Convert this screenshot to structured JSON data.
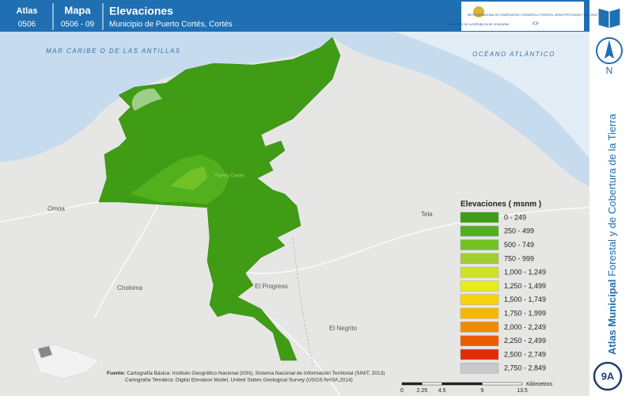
{
  "header": {
    "atlas_label": "Atlas",
    "atlas_code": "0506",
    "map_label": "Mapa",
    "map_code": "0506 - 09",
    "title": "Elevaciones",
    "subtitle": "Municipio de Puerto Cortés, Cortés",
    "logo_left": "GOBIERNO DE LA REPÚBLICA DE HONDURAS",
    "logo_right": "INSTITUTO NACIONAL DE CONSERVACIÓN Y DESARROLLO FORESTAL, ÁREAS PROTEGIDAS Y VIDA SILVESTRE",
    "logo_right_short": "ICF"
  },
  "sidebar": {
    "north": "N",
    "atlas_bold": "Atlas Municipal",
    "atlas_rest": "Forestal y de Cobertura de la Tierra",
    "badge": "9A"
  },
  "places": {
    "sea_west": "MAR CARIBE O DE LAS ANTILLAS",
    "sea_east": "OCÉANO ATLÁNTICO",
    "omoa": "Omoa",
    "tela": "Tela",
    "choloma": "Choloma",
    "progreso": "El Progreso",
    "negrito": "El Negrito",
    "cortes": "Puerto Cortés"
  },
  "legend": {
    "title": "Elevaciones ( msnm )",
    "items": [
      {
        "label": "0 - 249",
        "color": "#3f9c14"
      },
      {
        "label": "250 - 499",
        "color": "#52b01f"
      },
      {
        "label": "500 - 749",
        "color": "#72c227"
      },
      {
        "label": "750 - 999",
        "color": "#9fd030"
      },
      {
        "label": "1,000 - 1,249",
        "color": "#cde22e"
      },
      {
        "label": "1,250 - 1,499",
        "color": "#ebea1f"
      },
      {
        "label": "1,500 - 1,749",
        "color": "#f6d40c"
      },
      {
        "label": "1,750 - 1,999",
        "color": "#f7b800"
      },
      {
        "label": "2,000 - 2,249",
        "color": "#f28b00"
      },
      {
        "label": "2,250 - 2,499",
        "color": "#ec5b00"
      },
      {
        "label": "2,500 - 2,749",
        "color": "#e32b00"
      },
      {
        "label": "2,750 - 2,849",
        "color": "#c9c9c9"
      }
    ]
  },
  "footer": {
    "source_label": "Fuente:",
    "source_1": "Cartografía Básica: Instituto Geográfico Nacional (IGN), Sistema Nacional de Información Territorial (SINIT, 2013)",
    "source_2": "Cartografía Temática: Digital Elevation Model, United States Geological Survey (USGS-NASA,2014)"
  },
  "scale_bar": {
    "ticks": [
      "0",
      "2.25",
      "4.5",
      "9",
      "13.5"
    ],
    "unit": "Kilómetros"
  }
}
